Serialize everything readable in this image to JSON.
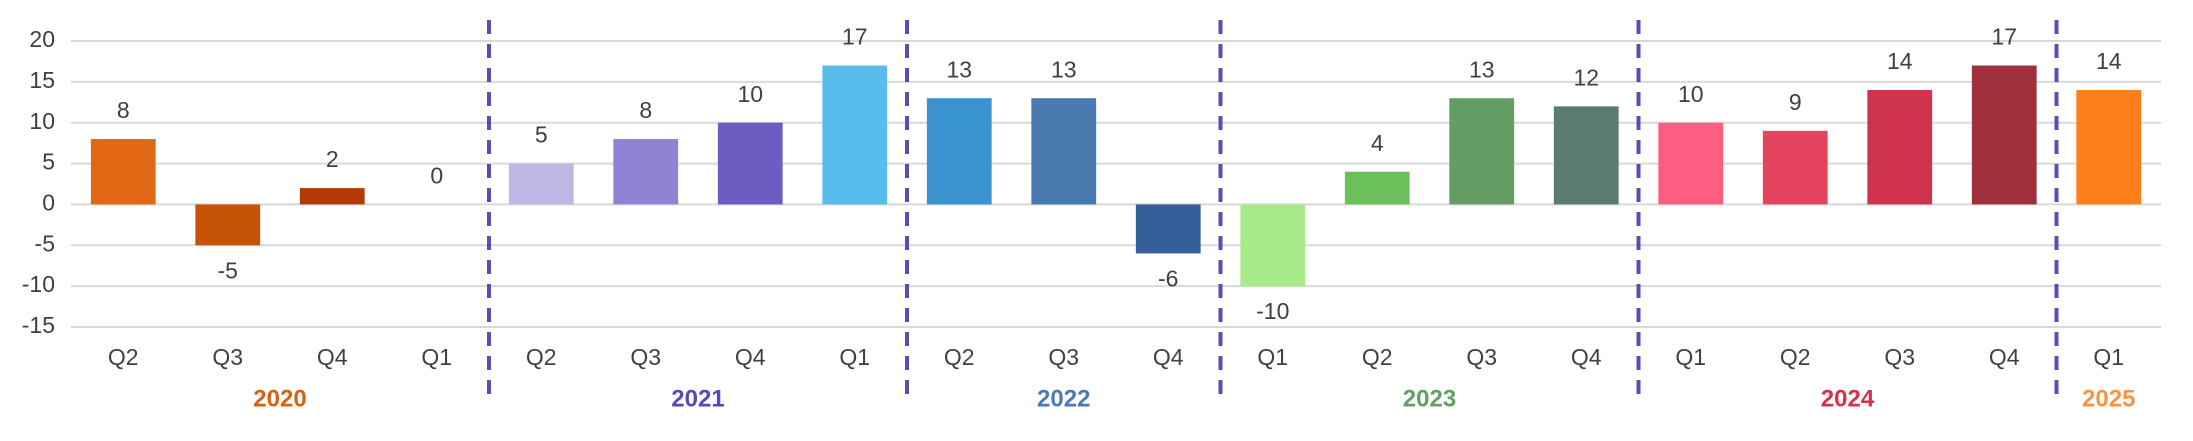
{
  "chart_data": {
    "type": "bar",
    "ylim": [
      -15,
      20
    ],
    "yticks": [
      -15,
      -10,
      -5,
      0,
      5,
      10,
      15,
      20
    ],
    "grid": true,
    "separator_color": "#5b4bb5",
    "groups": [
      {
        "label": "2020",
        "label_color": "#d4620f",
        "categories": [
          "Q2",
          "Q3",
          "Q4",
          "Q1"
        ],
        "values": [
          8,
          -5,
          2,
          0
        ],
        "colors": [
          "#e06714",
          "#c65308",
          "#b33a06",
          "#b33a06"
        ]
      },
      {
        "label": "2021",
        "label_color": "#5b47b8",
        "categories": [
          "Q2",
          "Q3",
          "Q4",
          "Q1"
        ],
        "values": [
          5,
          8,
          10,
          17
        ],
        "colors": [
          "#c0b6e6",
          "#9183d3",
          "#6d5cc2",
          "#58bdec"
        ]
      },
      {
        "label": "2022",
        "label_color": "#4a79b5",
        "categories": [
          "Q2",
          "Q3",
          "Q4"
        ],
        "values": [
          13,
          13,
          -6
        ],
        "colors": [
          "#3a92cf",
          "#4a79b0",
          "#355f98"
        ]
      },
      {
        "label": "2023",
        "label_color": "#62a060",
        "categories": [
          "Q1",
          "Q2",
          "Q3",
          "Q4"
        ],
        "values": [
          -10,
          4,
          13,
          12
        ],
        "colors": [
          "#a8eb88",
          "#6cc05a",
          "#649e64",
          "#5a7c6e"
        ]
      },
      {
        "label": "2024",
        "label_color": "#d3324e",
        "categories": [
          "Q1",
          "Q2",
          "Q3",
          "Q4"
        ],
        "values": [
          10,
          9,
          14,
          17
        ],
        "colors": [
          "#fb5e80",
          "#e5445f",
          "#cf334f",
          "#a0303e"
        ]
      },
      {
        "label": "2025",
        "label_color": "#fd9340",
        "categories": [
          "Q1"
        ],
        "values": [
          14
        ],
        "colors": [
          "#fd7f1b"
        ]
      }
    ]
  }
}
